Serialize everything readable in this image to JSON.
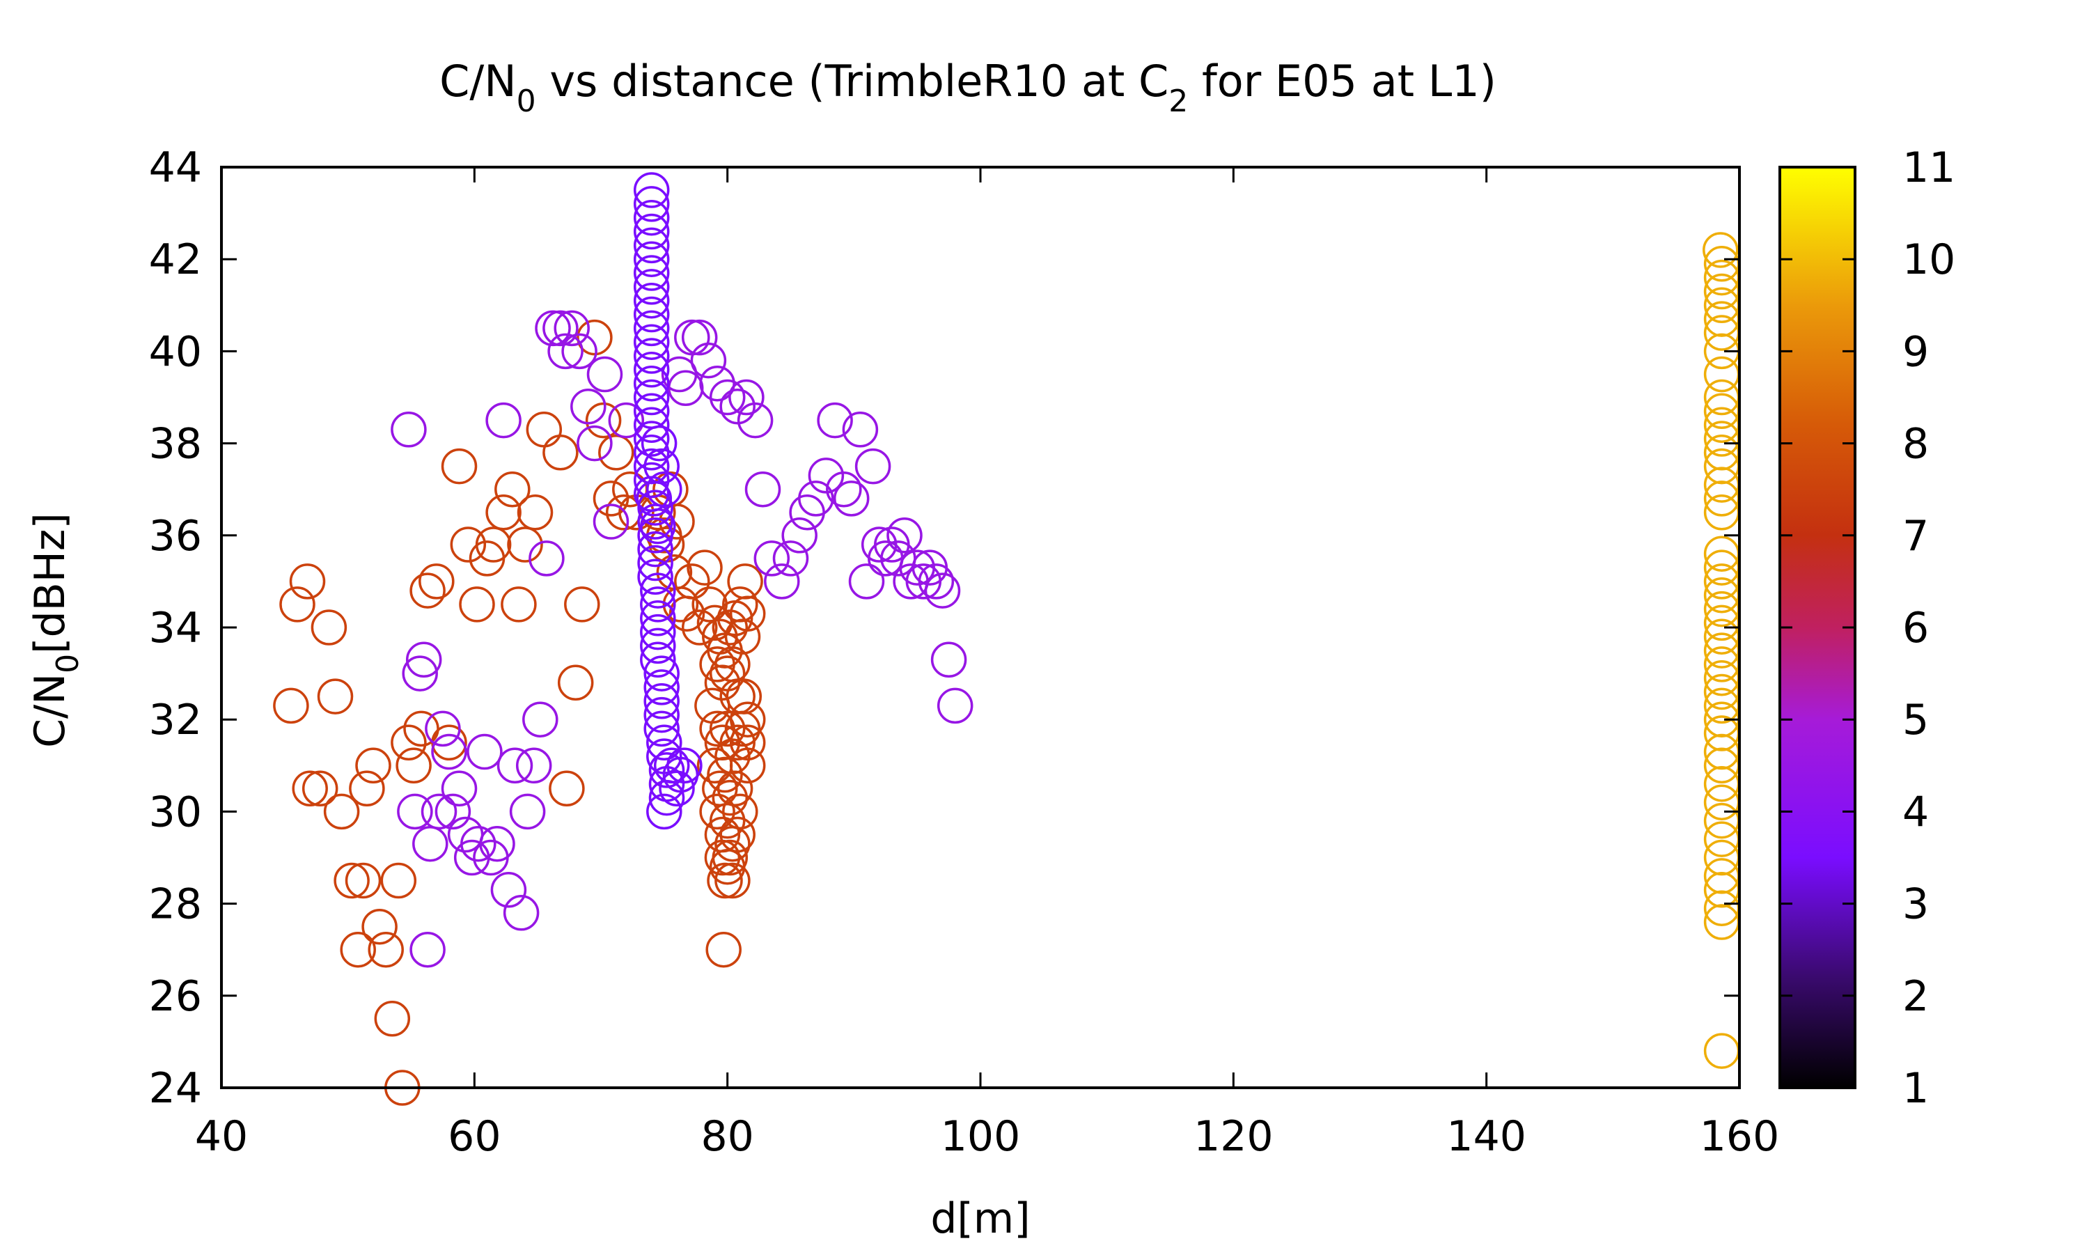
{
  "chart_data": {
    "type": "scatter",
    "title": {
      "pre": "C/N",
      "sub1": "0",
      "mid": " vs distance (TrimbleR10 at C",
      "sub2": "2",
      "post": " for E05 at L1)"
    },
    "xlabel": "d[m]",
    "ylabel": {
      "pre": "C/N",
      "sub": "0",
      "post": "[dBHz]"
    },
    "xlim": [
      40,
      160
    ],
    "ylim": [
      24,
      44
    ],
    "xticks": [
      "40",
      "60",
      "80",
      "100",
      "120",
      "140",
      "160"
    ],
    "yticks": [
      "24",
      "26",
      "28",
      "30",
      "32",
      "34",
      "36",
      "38",
      "40",
      "42",
      "44"
    ],
    "colorbar": {
      "range": [
        1,
        11
      ],
      "ticks": [
        "1",
        "2",
        "3",
        "4",
        "5",
        "6",
        "7",
        "8",
        "9",
        "10",
        "11"
      ],
      "colormap": "black-purple-red-orange-yellow"
    },
    "marker": "open-circle",
    "grid": false,
    "clusters": [
      {
        "z": 7.5,
        "points": [
          [
            45.5,
            32.3
          ],
          [
            46,
            34.5
          ],
          [
            46.8,
            35
          ],
          [
            47,
            30.5
          ],
          [
            47.8,
            30.5
          ],
          [
            48.5,
            34
          ],
          [
            49,
            32.5
          ],
          [
            49.5,
            30
          ],
          [
            50.3,
            28.5
          ],
          [
            50.8,
            27
          ],
          [
            51.2,
            28.5
          ],
          [
            51.5,
            30.5
          ],
          [
            52,
            31
          ],
          [
            52.5,
            27.5
          ],
          [
            53,
            27
          ],
          [
            53.5,
            25.5
          ],
          [
            54,
            28.5
          ],
          [
            54.3,
            24
          ],
          [
            54.8,
            31.5
          ],
          [
            55.2,
            31
          ],
          [
            55.8,
            31.8
          ],
          [
            56.3,
            34.8
          ],
          [
            57,
            35
          ],
          [
            58,
            31.5
          ],
          [
            58.8,
            37.5
          ],
          [
            59.5,
            35.8
          ],
          [
            60.2,
            34.5
          ],
          [
            61,
            35.5
          ],
          [
            61.5,
            35.8
          ],
          [
            62.3,
            36.5
          ],
          [
            63,
            37
          ],
          [
            63.5,
            34.5
          ],
          [
            64,
            35.8
          ],
          [
            64.8,
            36.5
          ],
          [
            65.5,
            38.3
          ],
          [
            66.8,
            37.8
          ],
          [
            67.3,
            30.5
          ],
          [
            68,
            32.8
          ],
          [
            68.5,
            34.5
          ],
          [
            69.5,
            40.3
          ],
          [
            70.2,
            38.5
          ],
          [
            70.8,
            36.8
          ],
          [
            71.2,
            37.8
          ],
          [
            71.8,
            36.5
          ],
          [
            72.3,
            37
          ],
          [
            72.8,
            36.5
          ],
          [
            74.5,
            36.5
          ],
          [
            75,
            36
          ],
          [
            75.5,
            37
          ],
          [
            76,
            36.3
          ],
          [
            75.2,
            35.8
          ],
          [
            75.8,
            35.2
          ],
          [
            76.3,
            34.5
          ],
          [
            76.8,
            34.3
          ],
          [
            77.2,
            35
          ],
          [
            77.8,
            34
          ],
          [
            78.2,
            35.3
          ],
          [
            78.6,
            34.5
          ],
          [
            79,
            34.1
          ],
          [
            79.4,
            33.8
          ],
          [
            79.8,
            33.5
          ],
          [
            80.2,
            34
          ],
          [
            80.6,
            34.2
          ],
          [
            81,
            34.5
          ],
          [
            81.4,
            35
          ],
          [
            81.6,
            34.3
          ],
          [
            81.2,
            33.8
          ],
          [
            79.2,
            33.2
          ],
          [
            79.6,
            32.8
          ],
          [
            80,
            33
          ],
          [
            80.4,
            33.2
          ],
          [
            80.8,
            32.5
          ],
          [
            81.3,
            32.5
          ],
          [
            81.6,
            32
          ],
          [
            78.8,
            32.3
          ],
          [
            79.2,
            31.8
          ],
          [
            79.6,
            31.5
          ],
          [
            80,
            31.8
          ],
          [
            80.4,
            31.2
          ],
          [
            80.8,
            31.5
          ],
          [
            81.2,
            31.8
          ],
          [
            81.6,
            31.5
          ],
          [
            81.6,
            31
          ],
          [
            79,
            31
          ],
          [
            79.4,
            30.5
          ],
          [
            79.8,
            30.8
          ],
          [
            80.2,
            30.3
          ],
          [
            80.6,
            30.5
          ],
          [
            81,
            30
          ],
          [
            79.2,
            30
          ],
          [
            79.6,
            29.5
          ],
          [
            80,
            29.8
          ],
          [
            80.4,
            29.3
          ],
          [
            80.8,
            29.5
          ],
          [
            79.6,
            29
          ],
          [
            80,
            28.8
          ],
          [
            80.4,
            28.5
          ],
          [
            79.8,
            28.5
          ],
          [
            80.2,
            29
          ],
          [
            79.7,
            27
          ]
        ]
      },
      {
        "z": 4.5,
        "points": [
          [
            54.8,
            38.3
          ],
          [
            55.3,
            30
          ],
          [
            55.7,
            33
          ],
          [
            56,
            33.3
          ],
          [
            56.3,
            27
          ],
          [
            56.5,
            29.3
          ],
          [
            57.2,
            30
          ],
          [
            57.5,
            31.8
          ],
          [
            58,
            31.3
          ],
          [
            58.3,
            30
          ],
          [
            58.8,
            30.5
          ],
          [
            59.3,
            29.5
          ],
          [
            59.8,
            29
          ],
          [
            60.3,
            29.3
          ],
          [
            60.8,
            31.3
          ],
          [
            61.3,
            29
          ],
          [
            61.8,
            29.3
          ],
          [
            62.3,
            38.5
          ],
          [
            62.7,
            28.3
          ],
          [
            63.2,
            31
          ],
          [
            63.7,
            27.8
          ],
          [
            64.2,
            30
          ],
          [
            64.7,
            31
          ],
          [
            65.2,
            32
          ],
          [
            65.7,
            35.5
          ],
          [
            66.2,
            40.5
          ],
          [
            66.8,
            40.5
          ],
          [
            67.2,
            40
          ],
          [
            67.7,
            40.5
          ],
          [
            68.3,
            40
          ],
          [
            69,
            38.8
          ],
          [
            69.5,
            38
          ],
          [
            70.3,
            39.5
          ],
          [
            70.8,
            36.3
          ],
          [
            72,
            38.5
          ],
          [
            76.2,
            39.5
          ],
          [
            76.7,
            39.2
          ],
          [
            77.2,
            40.3
          ],
          [
            77.8,
            40.3
          ],
          [
            78.5,
            39.8
          ],
          [
            79.2,
            39.3
          ],
          [
            80,
            39
          ],
          [
            80.8,
            38.8
          ],
          [
            81.5,
            39
          ],
          [
            82.2,
            38.5
          ],
          [
            82.8,
            37
          ],
          [
            83.5,
            35.5
          ],
          [
            84.3,
            35
          ],
          [
            85,
            35.5
          ],
          [
            85.7,
            36
          ],
          [
            86.3,
            36.5
          ],
          [
            87,
            36.8
          ],
          [
            87.8,
            37.3
          ],
          [
            88.5,
            38.5
          ],
          [
            89.2,
            37
          ],
          [
            89.8,
            36.8
          ],
          [
            90.5,
            38.3
          ],
          [
            91,
            35
          ],
          [
            91.5,
            37.5
          ],
          [
            92,
            35.8
          ],
          [
            92.5,
            35.5
          ],
          [
            93,
            35.8
          ],
          [
            93.5,
            35.5
          ],
          [
            94,
            36
          ],
          [
            94.5,
            35
          ],
          [
            95,
            35.3
          ],
          [
            95.5,
            35
          ],
          [
            96,
            35.3
          ],
          [
            96.5,
            35
          ],
          [
            97,
            34.8
          ],
          [
            97.5,
            33.3
          ],
          [
            98,
            32.3
          ]
        ]
      },
      {
        "z": 3.5,
        "points": [
          [
            74,
            43.5
          ],
          [
            74,
            43.2
          ],
          [
            74,
            42.9
          ],
          [
            74,
            42.6
          ],
          [
            74,
            42.3
          ],
          [
            74,
            42
          ],
          [
            74,
            41.7
          ],
          [
            74,
            41.4
          ],
          [
            74,
            41.1
          ],
          [
            74,
            40.8
          ],
          [
            74,
            40.5
          ],
          [
            74,
            40.2
          ],
          [
            74,
            39.9
          ],
          [
            74,
            39.6
          ],
          [
            74,
            39.3
          ],
          [
            74,
            39
          ],
          [
            74,
            38.7
          ],
          [
            74,
            38.4
          ],
          [
            74,
            38.1
          ],
          [
            74,
            37.8
          ],
          [
            74,
            37.5
          ],
          [
            74,
            37.2
          ],
          [
            74,
            36.9
          ],
          [
            74.3,
            36.6
          ],
          [
            74.3,
            36.3
          ],
          [
            74.3,
            36
          ],
          [
            74.3,
            35.7
          ],
          [
            74.3,
            35.4
          ],
          [
            74.3,
            35.1
          ],
          [
            74.5,
            34.8
          ],
          [
            74.5,
            34.5
          ],
          [
            74.5,
            34.2
          ],
          [
            74.5,
            33.9
          ],
          [
            74.5,
            33.6
          ],
          [
            74.5,
            33.3
          ],
          [
            74.8,
            33
          ],
          [
            74.8,
            32.7
          ],
          [
            74.8,
            32.4
          ],
          [
            74.8,
            32.1
          ],
          [
            74.8,
            31.8
          ],
          [
            75,
            31.5
          ],
          [
            75,
            31.2
          ],
          [
            75.2,
            30.9
          ],
          [
            75.2,
            30.6
          ],
          [
            75.2,
            30.3
          ],
          [
            75,
            30
          ],
          [
            75.6,
            31
          ],
          [
            76,
            30.5
          ],
          [
            76.3,
            30.8
          ],
          [
            76.6,
            31
          ],
          [
            74.6,
            38
          ],
          [
            74.8,
            37.5
          ],
          [
            75,
            37
          ],
          [
            74.2,
            36.8
          ],
          [
            74.5,
            36.2
          ]
        ]
      },
      {
        "z": 9.8,
        "points": [
          [
            158.5,
            42.2
          ],
          [
            158.6,
            41.9
          ],
          [
            158.6,
            41.6
          ],
          [
            158.6,
            41.3
          ],
          [
            158.6,
            41
          ],
          [
            158.6,
            40.7
          ],
          [
            158.6,
            40.4
          ],
          [
            158.6,
            40
          ],
          [
            158.6,
            39.5
          ],
          [
            158.6,
            39
          ],
          [
            158.6,
            38.7
          ],
          [
            158.6,
            38.4
          ],
          [
            158.6,
            38.1
          ],
          [
            158.6,
            37.8
          ],
          [
            158.6,
            37.5
          ],
          [
            158.6,
            37.1
          ],
          [
            158.6,
            36.8
          ],
          [
            158.6,
            36.5
          ],
          [
            158.6,
            35.6
          ],
          [
            158.6,
            35.3
          ],
          [
            158.6,
            35
          ],
          [
            158.6,
            34.7
          ],
          [
            158.6,
            34.4
          ],
          [
            158.6,
            34.1
          ],
          [
            158.6,
            33.8
          ],
          [
            158.6,
            33.5
          ],
          [
            158.6,
            33.2
          ],
          [
            158.6,
            32.9
          ],
          [
            158.6,
            32.6
          ],
          [
            158.6,
            32.3
          ],
          [
            158.6,
            32
          ],
          [
            158.6,
            31.7
          ],
          [
            158.6,
            31.3
          ],
          [
            158.6,
            31
          ],
          [
            158.6,
            30.6
          ],
          [
            158.6,
            30.2
          ],
          [
            158.6,
            29.8
          ],
          [
            158.6,
            29.4
          ],
          [
            158.6,
            29
          ],
          [
            158.6,
            28.6
          ],
          [
            158.6,
            28.3
          ],
          [
            158.6,
            27.9
          ],
          [
            158.6,
            27.6
          ],
          [
            158.6,
            24.8
          ]
        ]
      }
    ]
  }
}
